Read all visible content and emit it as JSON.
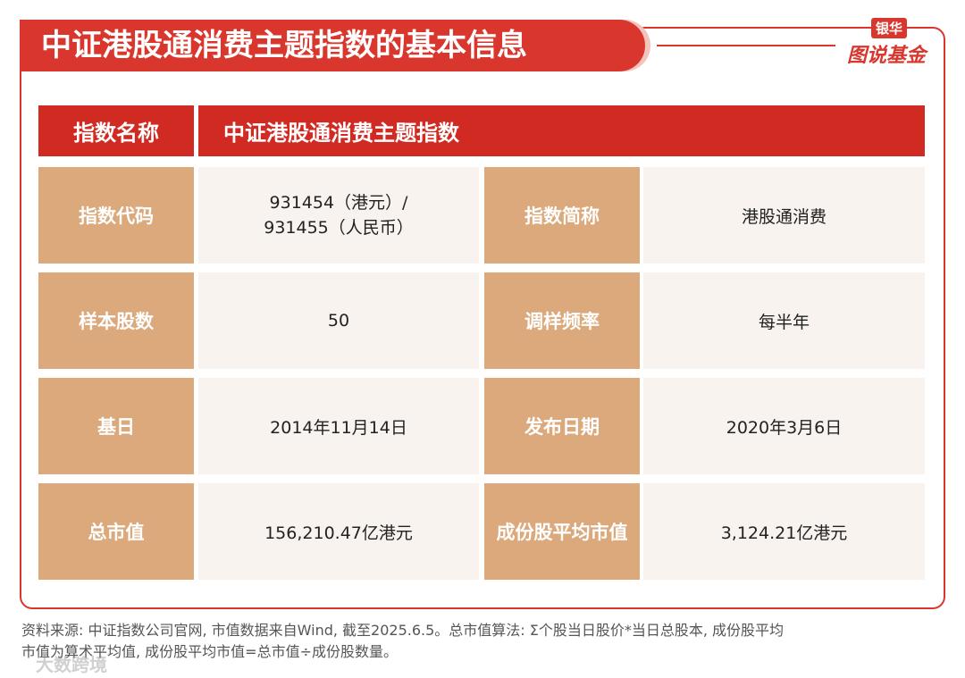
{
  "header": {
    "title": "中证港股通消费主题指数的基本信息"
  },
  "logo": {
    "top": "银华",
    "bottom": "图说基金"
  },
  "table": {
    "rows": [
      [
        "指数名称",
        "中证港股通消费主题指数"
      ],
      [
        "指数代码",
        [
          "931454（港元）/",
          "931455（人民币）"
        ],
        "指数简称",
        "港股通消费"
      ],
      [
        "样本股数",
        "50",
        "调样频率",
        "每半年"
      ],
      [
        "基日",
        "2014年11月14日",
        "发布日期",
        "2020年3月6日"
      ],
      [
        "总市值",
        "156,210.47亿港元",
        "成份股平均市值",
        "3,124.21亿港元"
      ]
    ]
  },
  "footer": {
    "lines": [
      "资料来源: 中证指数公司官网, 市值数据来自Wind, 截至2025.6.5。总市值算法: Σ个股当日股价*当日总股本, 成份股平均",
      "市值为算术平均值, 成份股平均市值=总市值÷成份股数量。"
    ]
  },
  "watermark": "大数跨境"
}
